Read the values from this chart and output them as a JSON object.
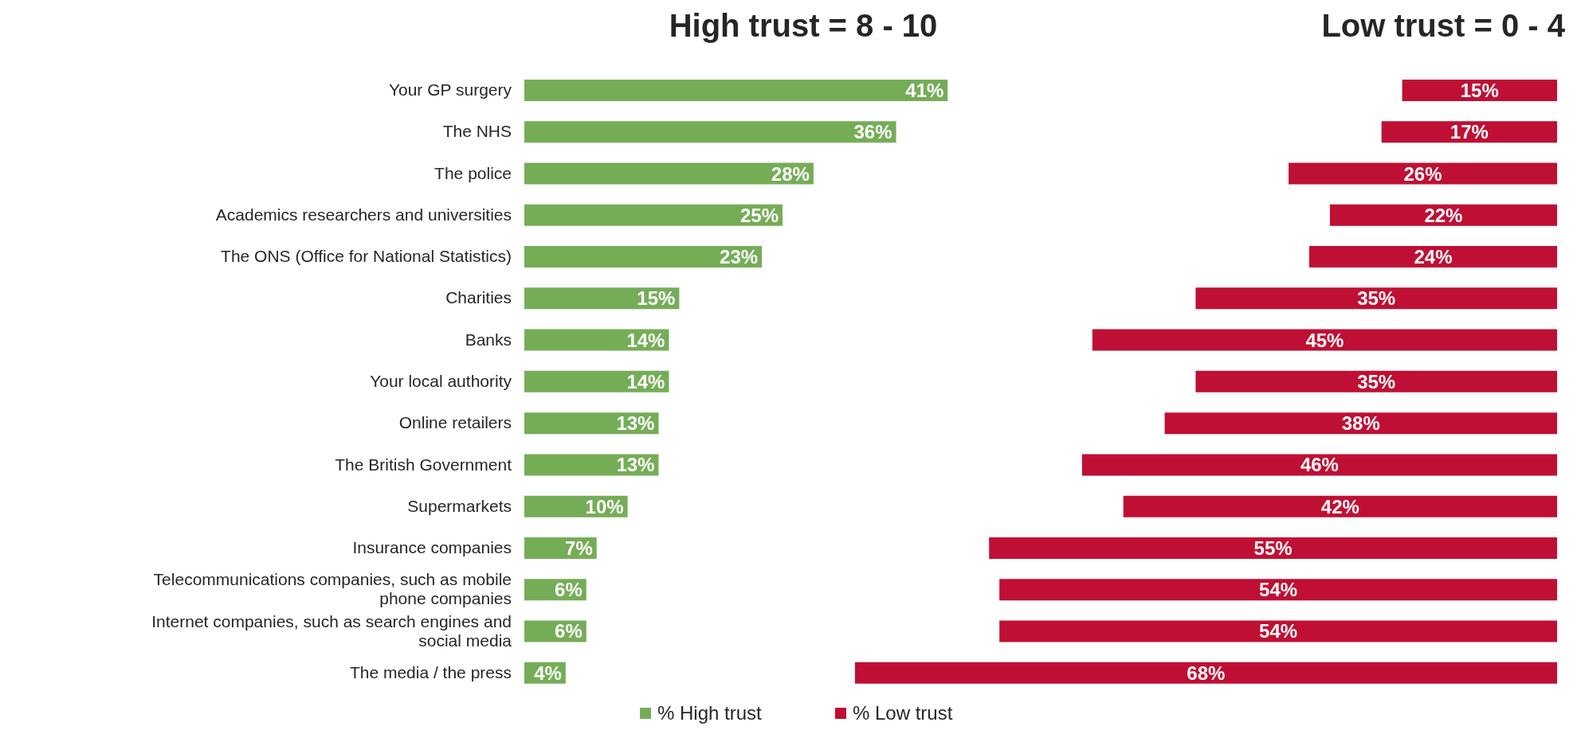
{
  "chart_data": [
    {
      "type": "bar",
      "orientation": "horizontal",
      "title": "High trust = 8 - 10",
      "categories": [
        "Your GP surgery",
        "The NHS",
        "The police",
        "Academics researchers and universities",
        "The ONS (Office for National Statistics)",
        "Charities",
        "Banks",
        "Your local authority",
        "Online retailers",
        "The British Government",
        "Supermarkets",
        "Insurance companies",
        "Telecommunications companies, such as mobile phone companies",
        "Internet companies, such as search engines and social media",
        "The media / the press"
      ],
      "series": [
        {
          "name": "% High trust",
          "color": "#75ad57",
          "values": [
            41,
            36,
            28,
            25,
            23,
            15,
            14,
            14,
            13,
            13,
            10,
            7,
            6,
            6,
            4
          ],
          "value_labels": [
            "41%",
            "36%",
            "28%",
            "25%",
            "23%",
            "15%",
            "14%",
            "14%",
            "13%",
            "13%",
            "10%",
            "7%",
            "6%",
            "6%",
            "4%"
          ]
        }
      ],
      "xlim": [
        0,
        41
      ],
      "tick_labels": "y",
      "legend": "bottom"
    },
    {
      "type": "bar",
      "orientation": "horizontal",
      "title": "Low trust = 0 - 4",
      "categories": [
        null,
        null,
        null,
        null,
        null,
        null,
        null,
        null,
        null,
        null,
        null,
        null,
        null,
        null,
        null
      ],
      "series": [
        {
          "name": "% Low trust",
          "color": "#c00f34",
          "values": [
            15,
            17,
            26,
            22,
            24,
            35,
            45,
            35,
            38,
            46,
            42,
            55,
            54,
            54,
            68
          ],
          "value_labels": [
            "15%",
            "17%",
            "26%",
            "22%",
            "24%",
            "35%",
            "45%",
            "35%",
            "38%",
            "46%",
            "42%",
            "55%",
            "54%",
            "54%",
            "68%"
          ]
        }
      ],
      "xlim": [
        68,
        0
      ],
      "tick_labels": false,
      "legend": "bottom"
    }
  ]
}
